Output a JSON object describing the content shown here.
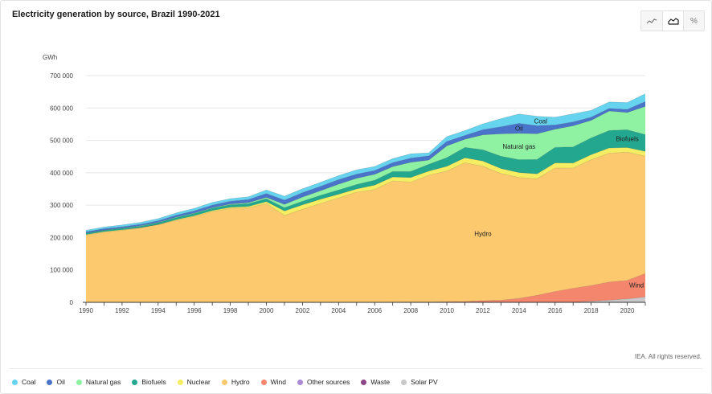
{
  "chart_data": {
    "type": "area",
    "stacked": true,
    "title": "Electricity generation by source, Brazil 1990-2021",
    "ylabel": "GWh",
    "ylim": [
      0,
      700000
    ],
    "yticks": [
      0,
      100000,
      200000,
      300000,
      400000,
      500000,
      600000,
      700000
    ],
    "ytick_labels": [
      "0",
      "100 000",
      "200 000",
      "300 000",
      "400 000",
      "500 000",
      "600 000",
      "700 000"
    ],
    "xlim": [
      1990,
      2021
    ],
    "xticks": [
      1990,
      1992,
      1994,
      1996,
      1998,
      2000,
      2002,
      2004,
      2006,
      2008,
      2010,
      2012,
      2014,
      2016,
      2018,
      2020
    ],
    "grid": "horizontal",
    "legend_position": "bottom",
    "x": [
      1990,
      1991,
      1992,
      1993,
      1994,
      1995,
      1996,
      1997,
      1998,
      1999,
      2000,
      2001,
      2002,
      2003,
      2004,
      2005,
      2006,
      2007,
      2008,
      2009,
      2010,
      2011,
      2012,
      2013,
      2014,
      2015,
      2016,
      2017,
      2018,
      2019,
      2020,
      2021
    ],
    "series": [
      {
        "name": "Solar PV",
        "color": "#c8c8c8",
        "label": "",
        "values": [
          0,
          0,
          0,
          0,
          0,
          0,
          0,
          0,
          0,
          0,
          0,
          0,
          0,
          0,
          0,
          0,
          0,
          0,
          0,
          0,
          0,
          0,
          0,
          0,
          0,
          0,
          100,
          800,
          3500,
          6600,
          10700,
          16800
        ]
      },
      {
        "name": "Waste",
        "color": "#8e4585",
        "label": "",
        "values": [
          0,
          0,
          0,
          0,
          0,
          0,
          0,
          0,
          0,
          0,
          0,
          0,
          0,
          0,
          0,
          0,
          0,
          0,
          0,
          0,
          0,
          0,
          0,
          0,
          0,
          0,
          0,
          0,
          0,
          0,
          0,
          0
        ]
      },
      {
        "name": "Other sources",
        "color": "#a98bd6",
        "label": "",
        "values": [
          0,
          0,
          0,
          0,
          0,
          0,
          0,
          0,
          0,
          0,
          0,
          0,
          0,
          0,
          0,
          0,
          0,
          0,
          0,
          0,
          0,
          0,
          0,
          0,
          0,
          0,
          0,
          0,
          0,
          0,
          0,
          0
        ]
      },
      {
        "name": "Wind",
        "color": "#f4866d",
        "label": "Wind",
        "values": [
          0,
          0,
          0,
          0,
          0,
          0,
          0,
          0,
          0,
          0,
          0,
          100,
          100,
          100,
          100,
          100,
          200,
          700,
          1200,
          1200,
          2200,
          2700,
          5100,
          6600,
          12200,
          21600,
          33500,
          42400,
          48500,
          55900,
          57000,
          72300
        ]
      },
      {
        "name": "Hydro",
        "color": "#fdc96e",
        "label": "Hydro",
        "values": [
          207000,
          217000,
          222000,
          230000,
          240000,
          253000,
          265000,
          280000,
          290000,
          292000,
          305000,
          268000,
          287000,
          305000,
          322000,
          340000,
          348000,
          374000,
          370000,
          391000,
          403000,
          428000,
          415000,
          391000,
          373000,
          360000,
          381000,
          371000,
          388000,
          398000,
          396000,
          362000
        ]
      },
      {
        "name": "Nuclear",
        "color": "#f5ed62",
        "label": "",
        "values": [
          2200,
          1400,
          1800,
          400,
          0,
          2500,
          2400,
          3200,
          3300,
          4000,
          6000,
          14000,
          13800,
          13400,
          11600,
          9900,
          13800,
          12400,
          14000,
          13000,
          14500,
          15600,
          16000,
          15500,
          15400,
          14700,
          15900,
          15700,
          15700,
          16100,
          14100,
          14700
        ]
      },
      {
        "name": "Biofuels",
        "color": "#23a88f",
        "label": "Biofuels",
        "values": [
          4000,
          4200,
          4500,
          5000,
          6000,
          6500,
          7000,
          7500,
          8000,
          8500,
          9000,
          10000,
          11000,
          12000,
          13000,
          14000,
          15000,
          17000,
          19000,
          21000,
          27000,
          32000,
          35000,
          38000,
          40000,
          45000,
          48000,
          50000,
          52000,
          54000,
          55000,
          52000
        ]
      },
      {
        "name": "Natural gas",
        "color": "#8ff2a3",
        "label": "Natural gas",
        "values": [
          400,
          600,
          700,
          800,
          900,
          1000,
          1200,
          1500,
          2000,
          3000,
          4000,
          10000,
          13000,
          14000,
          18000,
          19000,
          18000,
          15000,
          28000,
          13000,
          36000,
          25000,
          46000,
          69000,
          81000,
          79000,
          56000,
          65000,
          54000,
          60000,
          53000,
          87000
        ]
      },
      {
        "name": "Oil",
        "color": "#4a74c9",
        "label": "Oil",
        "values": [
          4000,
          4100,
          4300,
          4500,
          5000,
          6000,
          7000,
          8000,
          9000,
          10000,
          12000,
          13500,
          14000,
          14000,
          14000,
          13000,
          12000,
          12000,
          13000,
          13000,
          14000,
          12000,
          16000,
          22000,
          31000,
          25000,
          13000,
          12000,
          10000,
          8000,
          10000,
          15000
        ]
      },
      {
        "name": "Coal",
        "color": "#66d4ef",
        "label": "Coal",
        "values": [
          5000,
          5200,
          5500,
          6000,
          6500,
          7000,
          7500,
          8000,
          8000,
          8500,
          11000,
          12000,
          11500,
          12000,
          12500,
          13000,
          12500,
          12500,
          13500,
          9500,
          15000,
          15000,
          18000,
          25000,
          29000,
          29000,
          24000,
          25000,
          21000,
          20000,
          21000,
          24000
        ]
      }
    ]
  },
  "header": {
    "title": "Electricity generation by source, Brazil 1990-2021",
    "buttons": [
      {
        "name": "line-chart-button",
        "icon": "line-chart-icon",
        "active": false
      },
      {
        "name": "area-chart-button",
        "icon": "area-chart-icon",
        "active": true
      },
      {
        "name": "percent-button",
        "icon": "percent-icon",
        "label": "%",
        "active": false
      }
    ]
  },
  "footer": {
    "credit": "IEA. All rights reserved.",
    "legend": [
      {
        "label": "Coal",
        "color": "#66d4ef"
      },
      {
        "label": "Oil",
        "color": "#4a74c9"
      },
      {
        "label": "Natural gas",
        "color": "#8ff2a3"
      },
      {
        "label": "Biofuels",
        "color": "#23a88f"
      },
      {
        "label": "Nuclear",
        "color": "#f5ed62"
      },
      {
        "label": "Hydro",
        "color": "#fdc96e"
      },
      {
        "label": "Wind",
        "color": "#f4866d"
      },
      {
        "label": "Other sources",
        "color": "#a98bd6"
      },
      {
        "label": "Waste",
        "color": "#8e4585"
      },
      {
        "label": "Solar PV",
        "color": "#c8c8c8"
      }
    ]
  }
}
